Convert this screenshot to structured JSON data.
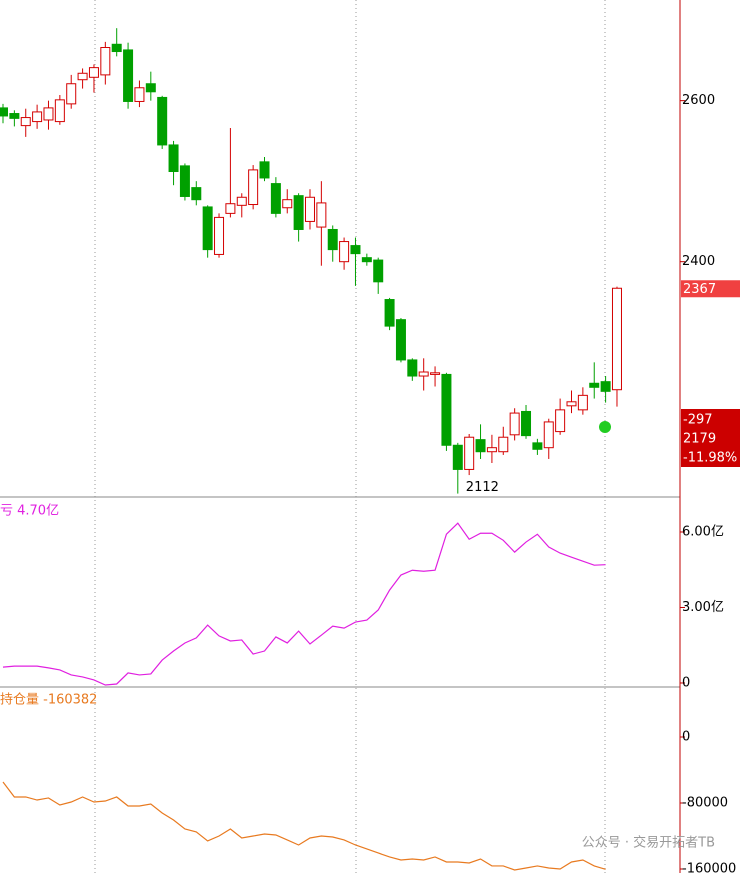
{
  "chart_data": [
    {
      "type": "candlestick",
      "up_color": "#d40000",
      "down_color": "#00a000",
      "open": [
        2591,
        2584,
        2569,
        2574,
        2576,
        2574,
        2596,
        2626,
        2629,
        2632,
        2670,
        2663,
        2599,
        2621,
        2604,
        2545,
        2519,
        2492,
        2468,
        2409,
        2460,
        2470,
        2471,
        2524,
        2497,
        2467,
        2482,
        2450,
        2443,
        2440,
        2400,
        2420,
        2405,
        2402,
        2353,
        2328,
        2278,
        2258,
        2260,
        2260,
        2172,
        2142,
        2179,
        2164,
        2164,
        2185,
        2214,
        2175,
        2169,
        2189,
        2221,
        2216,
        2249,
        2251,
        2241
      ],
      "high": [
        2596,
        2588,
        2590,
        2595,
        2600,
        2607,
        2632,
        2640,
        2645,
        2673,
        2690,
        2672,
        2625,
        2636,
        2606,
        2550,
        2522,
        2500,
        2470,
        2460,
        2566,
        2485,
        2520,
        2530,
        2505,
        2490,
        2485,
        2490,
        2500,
        2445,
        2430,
        2430,
        2410,
        2405,
        2355,
        2330,
        2280,
        2280,
        2270,
        2262,
        2175,
        2186,
        2198,
        2185,
        2195,
        2218,
        2222,
        2180,
        2205,
        2230,
        2240,
        2244,
        2275,
        2258,
        2369
      ],
      "low": [
        2572,
        2568,
        2555,
        2565,
        2564,
        2570,
        2590,
        2615,
        2610,
        2620,
        2655,
        2590,
        2592,
        2600,
        2540,
        2495,
        2476,
        2470,
        2405,
        2405,
        2455,
        2455,
        2465,
        2500,
        2455,
        2460,
        2425,
        2440,
        2395,
        2400,
        2390,
        2370,
        2395,
        2360,
        2315,
        2275,
        2252,
        2240,
        2245,
        2165,
        2112,
        2135,
        2155,
        2150,
        2160,
        2178,
        2180,
        2160,
        2155,
        2185,
        2212,
        2210,
        2230,
        2225,
        2220
      ],
      "close": [
        2581,
        2578,
        2579,
        2586,
        2591,
        2601,
        2621,
        2634,
        2641,
        2666,
        2661,
        2599,
        2616,
        2611,
        2545,
        2512,
        2481,
        2477,
        2415,
        2455,
        2472,
        2480,
        2514,
        2504,
        2460,
        2477,
        2440,
        2480,
        2473,
        2415,
        2425,
        2410,
        2400,
        2375,
        2320,
        2278,
        2258,
        2263,
        2262,
        2172,
        2142,
        2182,
        2164,
        2169,
        2182,
        2212,
        2184,
        2167,
        2201,
        2216,
        2226,
        2234,
        2244,
        2239,
        2367
      ],
      "ylim": [
        2109,
        2725
      ],
      "yticks": [
        2400,
        2600
      ],
      "info_box": [
        "-297",
        "2179",
        "-11.98%"
      ]
    },
    {
      "type": "line",
      "title": "亏 4.70亿",
      "series": [
        {
          "color": "#e020e0",
          "values": [
            0.63,
            0.67,
            0.67,
            0.67,
            0.6,
            0.52,
            0.32,
            0.24,
            0.12,
            -0.08,
            -0.04,
            0.4,
            0.32,
            0.36,
            0.91,
            1.27,
            1.59,
            1.79,
            2.3,
            1.87,
            1.67,
            1.71,
            1.15,
            1.27,
            1.83,
            1.59,
            2.06,
            1.55,
            1.9,
            2.26,
            2.18,
            2.42,
            2.5,
            2.9,
            3.69,
            4.29,
            4.48,
            4.44,
            4.48,
            5.91,
            6.35,
            5.71,
            5.95,
            5.95,
            5.67,
            5.2,
            5.6,
            5.91,
            5.4,
            5.16,
            5.0,
            4.84,
            4.68,
            4.7
          ]
        }
      ],
      "ylim": [
        -0.12,
        7.39
      ],
      "yticks": [
        {
          "value": 0,
          "label": "0"
        },
        {
          "value": 3,
          "label": "3.00亿"
        },
        {
          "value": 6,
          "label": "6.00亿"
        }
      ]
    },
    {
      "type": "line",
      "title": "持仓量 -160382",
      "series": [
        {
          "color": "#e87a20",
          "values": [
            -54500,
            -72700,
            -72700,
            -76400,
            -73900,
            -82400,
            -78800,
            -72700,
            -78800,
            -77600,
            -72700,
            -83600,
            -83600,
            -81200,
            -92100,
            -100600,
            -111500,
            -115100,
            -126000,
            -120000,
            -111500,
            -122400,
            -120000,
            -117600,
            -118800,
            -124800,
            -130900,
            -122400,
            -120000,
            -121200,
            -124800,
            -130900,
            -135700,
            -140600,
            -145400,
            -149100,
            -147900,
            -149100,
            -145400,
            -151500,
            -151500,
            -152700,
            -147900,
            -156300,
            -156300,
            -161200,
            -158800,
            -156300,
            -158800,
            -160000,
            -151500,
            -149100,
            -156300,
            -160382
          ]
        }
      ],
      "ylim": [
        -164850,
        60600
      ],
      "yticks": [
        -160000,
        -80000,
        0
      ]
    }
  ],
  "watermark": "公众号 · 交易开拓者TB"
}
